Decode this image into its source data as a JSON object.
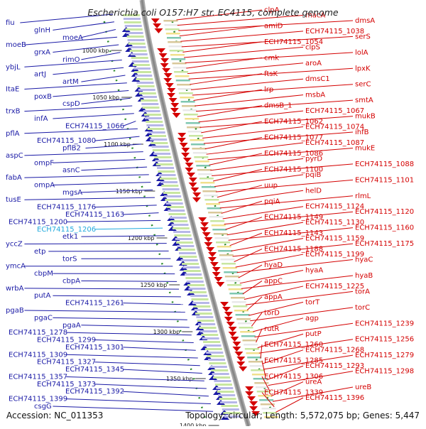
{
  "header": {
    "title": "Escherichia coli O157:H7 str. EC4115, complete genome"
  },
  "footer": {
    "accession": "Accession: NC_011353",
    "topology": "Topology: circular; Length: 5,572,075 bp; Genes: 5,447"
  },
  "colors": {
    "reverse_strand": "#1a1aa6",
    "forward_strand": "#d40000",
    "highlight": "#22aadd",
    "backbone": "#888888",
    "tick": "#2a8a2a"
  },
  "diagram": {
    "kbp_ticks": [
      "1000 kbp",
      "1050 kbp",
      "1100 kbp",
      "1150 kbp",
      "1200 kbp",
      "1250 kbp",
      "1300 kbp",
      "1350 kbp",
      "1400 kbp"
    ],
    "left_labels": [
      "fiu",
      "glnH",
      "moeA",
      "moeB",
      "grxA",
      "rimO",
      "ybjL",
      "artJ",
      "artM",
      "ItaE",
      "poxB",
      "cspD",
      "trxB",
      "infA",
      "ECH74115_1066",
      "pflA",
      "ECH74115_1080",
      "pflB2",
      "aspC",
      "ompF",
      "asnC",
      "fabA",
      "ompA",
      "mgsA",
      "tusE",
      "ECH74115_1176",
      "ECH74115_1163",
      "ECH74115_1200",
      "ECH74115_1206",
      "etk1",
      "yccZ",
      "etp",
      "torS",
      "ymcA",
      "cbpM",
      "cbpA",
      "wrbA",
      "putA",
      "ECH74115_1261",
      "pgaB",
      "pgaC",
      "pgaA",
      "ECH74115_1278",
      "ECH74115_1299",
      "ECH74115_1301",
      "ECH74115_1309",
      "ECH74115_1327",
      "ECH74115_1345",
      "ECH74115_1357",
      "ECH74115_1373",
      "ECH74115_1392",
      "ECH74115_1399",
      "csgG"
    ],
    "right_labels": [
      "clpA",
      "macA",
      "dmsA",
      "amiD",
      "ECH74115_1038",
      "serS",
      "ECH74115_1054",
      "clpS",
      "lolA",
      "cmk",
      "aroA",
      "lpxK",
      "ftsK",
      "dmsC1",
      "serC",
      "lrp",
      "msbA",
      "smtA",
      "dmsB_1",
      "ECH74115_1067",
      "mukB",
      "ECH74115_1062",
      "ECH74115_1074",
      "ihfB",
      "ECH74115_1077",
      "ECH74115_1087",
      "mukE",
      "ECH74115_1086",
      "pyrD",
      "ECH74115_1088",
      "ECH74115_1100",
      "pqiB",
      "ECH74115_1101",
      "uup",
      "helD",
      "rlmL",
      "pqiA",
      "ECH74115_1124",
      "ECH74115_1120",
      "ECH74115_1149",
      "ECH74115_1130",
      "ECH74115_1160",
      "ECH74115_1143",
      "ECH74115_1159",
      "ECH74115_1175",
      "ECH74115_1188",
      "ECH74115_1199",
      "hyaC",
      "hyaD",
      "hyaA",
      "hyaB",
      "appC",
      "ECH74115_1225",
      "torA",
      "appA",
      "torT",
      "torC",
      "torD",
      "agp",
      "ECH74115_1239",
      "rutR",
      "putP",
      "ECH74115_1256",
      "ECH74115_1260",
      "ECH74115_1268",
      "ECH74115_1279",
      "ECH74115_1285",
      "ECH74115_1293",
      "ECH74115_1298",
      "ECH74115_1306",
      "ureA",
      "ureB",
      "ECH74115_1339",
      "ECH74115_1396"
    ]
  }
}
